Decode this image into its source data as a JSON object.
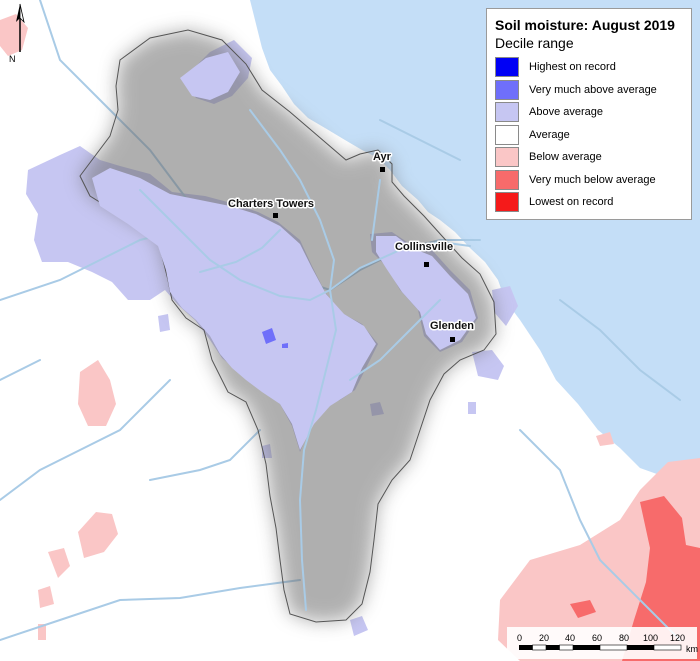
{
  "legend": {
    "title": "Soil moisture: August 2019",
    "subtitle": "Decile range",
    "items": [
      {
        "label": "Highest on record",
        "color": "#0000f5"
      },
      {
        "label": "Very much above average",
        "color": "#6f6ffa"
      },
      {
        "label": "Above average",
        "color": "#c6c6f2"
      },
      {
        "label": "Average",
        "color": "#ffffff"
      },
      {
        "label": "Below average",
        "color": "#fac6c6"
      },
      {
        "label": "Very much below average",
        "color": "#f76b6b"
      },
      {
        "label": "Lowest on record",
        "color": "#f51a1a"
      }
    ]
  },
  "towns": [
    {
      "name": "Ayr"
    },
    {
      "name": "Charters Towers"
    },
    {
      "name": "Collinsville"
    },
    {
      "name": "Glenden"
    }
  ],
  "north_arrow": {
    "label": "N"
  },
  "scale_bar": {
    "ticks": [
      "0",
      "20",
      "40",
      "60",
      "80",
      "100",
      "120"
    ],
    "unit": "km"
  },
  "colors": {
    "sea": "#c4def7",
    "river": "#a9cbe6",
    "catchment_fill": "#ffffff"
  }
}
